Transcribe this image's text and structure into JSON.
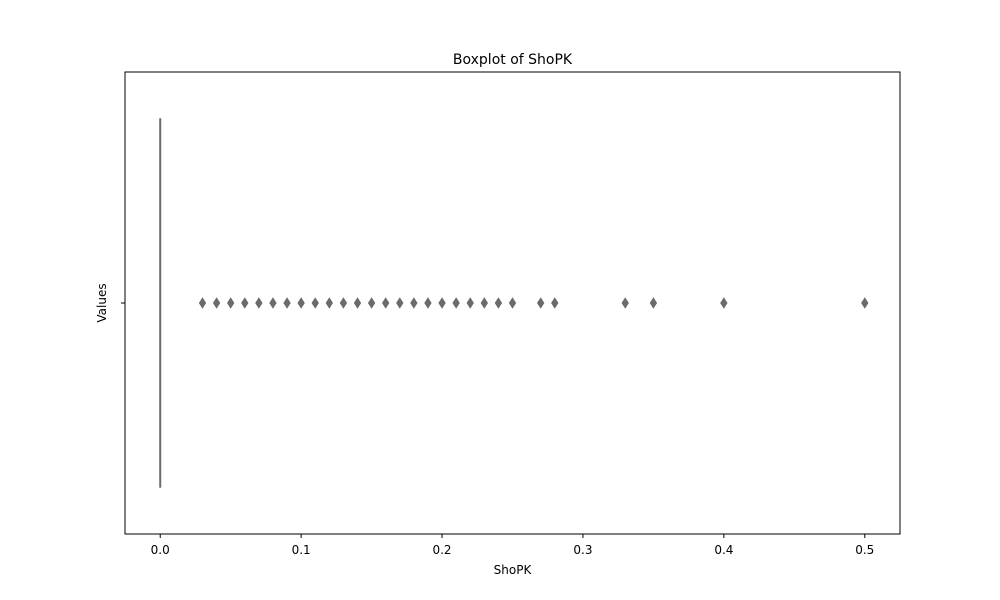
{
  "chart_data": {
    "type": "boxplot",
    "title": "Boxplot of ShoPK",
    "xlabel": "ShoPK",
    "ylabel": "Values",
    "xlim": [
      -0.025,
      0.525
    ],
    "xticks": [
      0.0,
      0.1,
      0.2,
      0.3,
      0.4,
      0.5
    ],
    "xtick_labels": [
      "0.0",
      "0.1",
      "0.2",
      "0.3",
      "0.4",
      "0.5"
    ],
    "ytick_labels": [
      ""
    ],
    "grid": false,
    "box": {
      "min": 0,
      "q1": 0,
      "median": 0,
      "q3": 0,
      "max": 0
    },
    "outliers": [
      0.03,
      0.04,
      0.05,
      0.06,
      0.07,
      0.08,
      0.09,
      0.1,
      0.11,
      0.12,
      0.13,
      0.14,
      0.15,
      0.16,
      0.17,
      0.18,
      0.19,
      0.2,
      0.21,
      0.22,
      0.23,
      0.24,
      0.25,
      0.27,
      0.28,
      0.33,
      0.35,
      0.4,
      0.5
    ],
    "colors": {
      "box": "#6b6b6b",
      "outlier": "#6b6b6b",
      "axes": "#000000"
    }
  }
}
